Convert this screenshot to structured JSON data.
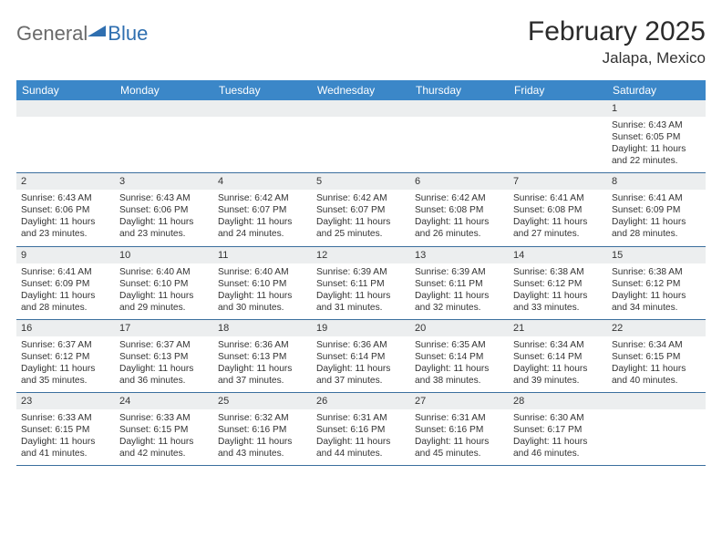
{
  "logo": {
    "textA": "General",
    "textB": "Blue"
  },
  "title": "February 2025",
  "location": "Jalapa, Mexico",
  "colors": {
    "headerBar": "#3b87c8",
    "stripe": "#eceeef",
    "rule": "#3b6f9e",
    "brandBlue": "#2f6fb0",
    "brandGray": "#6a6a6a",
    "text": "#333333",
    "background": "#ffffff"
  },
  "weekdays": [
    "Sunday",
    "Monday",
    "Tuesday",
    "Wednesday",
    "Thursday",
    "Friday",
    "Saturday"
  ],
  "layout": {
    "startOffset": 6,
    "daysInMonth": 28
  },
  "days": {
    "1": {
      "sunrise": "6:43 AM",
      "sunset": "6:05 PM",
      "daylight": "11 hours and 22 minutes."
    },
    "2": {
      "sunrise": "6:43 AM",
      "sunset": "6:06 PM",
      "daylight": "11 hours and 23 minutes."
    },
    "3": {
      "sunrise": "6:43 AM",
      "sunset": "6:06 PM",
      "daylight": "11 hours and 23 minutes."
    },
    "4": {
      "sunrise": "6:42 AM",
      "sunset": "6:07 PM",
      "daylight": "11 hours and 24 minutes."
    },
    "5": {
      "sunrise": "6:42 AM",
      "sunset": "6:07 PM",
      "daylight": "11 hours and 25 minutes."
    },
    "6": {
      "sunrise": "6:42 AM",
      "sunset": "6:08 PM",
      "daylight": "11 hours and 26 minutes."
    },
    "7": {
      "sunrise": "6:41 AM",
      "sunset": "6:08 PM",
      "daylight": "11 hours and 27 minutes."
    },
    "8": {
      "sunrise": "6:41 AM",
      "sunset": "6:09 PM",
      "daylight": "11 hours and 28 minutes."
    },
    "9": {
      "sunrise": "6:41 AM",
      "sunset": "6:09 PM",
      "daylight": "11 hours and 28 minutes."
    },
    "10": {
      "sunrise": "6:40 AM",
      "sunset": "6:10 PM",
      "daylight": "11 hours and 29 minutes."
    },
    "11": {
      "sunrise": "6:40 AM",
      "sunset": "6:10 PM",
      "daylight": "11 hours and 30 minutes."
    },
    "12": {
      "sunrise": "6:39 AM",
      "sunset": "6:11 PM",
      "daylight": "11 hours and 31 minutes."
    },
    "13": {
      "sunrise": "6:39 AM",
      "sunset": "6:11 PM",
      "daylight": "11 hours and 32 minutes."
    },
    "14": {
      "sunrise": "6:38 AM",
      "sunset": "6:12 PM",
      "daylight": "11 hours and 33 minutes."
    },
    "15": {
      "sunrise": "6:38 AM",
      "sunset": "6:12 PM",
      "daylight": "11 hours and 34 minutes."
    },
    "16": {
      "sunrise": "6:37 AM",
      "sunset": "6:12 PM",
      "daylight": "11 hours and 35 minutes."
    },
    "17": {
      "sunrise": "6:37 AM",
      "sunset": "6:13 PM",
      "daylight": "11 hours and 36 minutes."
    },
    "18": {
      "sunrise": "6:36 AM",
      "sunset": "6:13 PM",
      "daylight": "11 hours and 37 minutes."
    },
    "19": {
      "sunrise": "6:36 AM",
      "sunset": "6:14 PM",
      "daylight": "11 hours and 37 minutes."
    },
    "20": {
      "sunrise": "6:35 AM",
      "sunset": "6:14 PM",
      "daylight": "11 hours and 38 minutes."
    },
    "21": {
      "sunrise": "6:34 AM",
      "sunset": "6:14 PM",
      "daylight": "11 hours and 39 minutes."
    },
    "22": {
      "sunrise": "6:34 AM",
      "sunset": "6:15 PM",
      "daylight": "11 hours and 40 minutes."
    },
    "23": {
      "sunrise": "6:33 AM",
      "sunset": "6:15 PM",
      "daylight": "11 hours and 41 minutes."
    },
    "24": {
      "sunrise": "6:33 AM",
      "sunset": "6:15 PM",
      "daylight": "11 hours and 42 minutes."
    },
    "25": {
      "sunrise": "6:32 AM",
      "sunset": "6:16 PM",
      "daylight": "11 hours and 43 minutes."
    },
    "26": {
      "sunrise": "6:31 AM",
      "sunset": "6:16 PM",
      "daylight": "11 hours and 44 minutes."
    },
    "27": {
      "sunrise": "6:31 AM",
      "sunset": "6:16 PM",
      "daylight": "11 hours and 45 minutes."
    },
    "28": {
      "sunrise": "6:30 AM",
      "sunset": "6:17 PM",
      "daylight": "11 hours and 46 minutes."
    }
  },
  "labels": {
    "sunrise": "Sunrise: ",
    "sunset": "Sunset: ",
    "daylight": "Daylight: "
  }
}
